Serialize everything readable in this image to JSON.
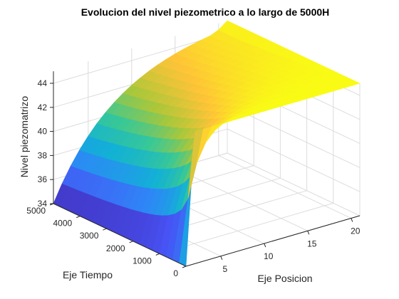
{
  "chart_data": {
    "type": "surface",
    "title": "Evolucion del nivel piezometrico a lo largo de 5000H",
    "xlabel": "Eje Posicion",
    "ylabel": "Eje Tiempo",
    "zlabel": "Nivel piezomatrizo",
    "x_ticks": [
      "5",
      "10",
      "15",
      "20"
    ],
    "y_ticks": [
      "0",
      "1000",
      "2000",
      "3000",
      "4000",
      "5000"
    ],
    "z_ticks": [
      "34",
      "36",
      "38",
      "40",
      "42",
      "44"
    ],
    "xlim": [
      1,
      21
    ],
    "ylim": [
      0,
      5000
    ],
    "zlim": [
      34,
      45
    ],
    "grid": true,
    "colormap": "parula",
    "surface": {
      "boundary_level_x1": 34,
      "boundary_level_x21": 45,
      "initial_level_t0": 45,
      "level_at_x1_t5000": 34,
      "level_at_x21_t5000": 45
    }
  }
}
